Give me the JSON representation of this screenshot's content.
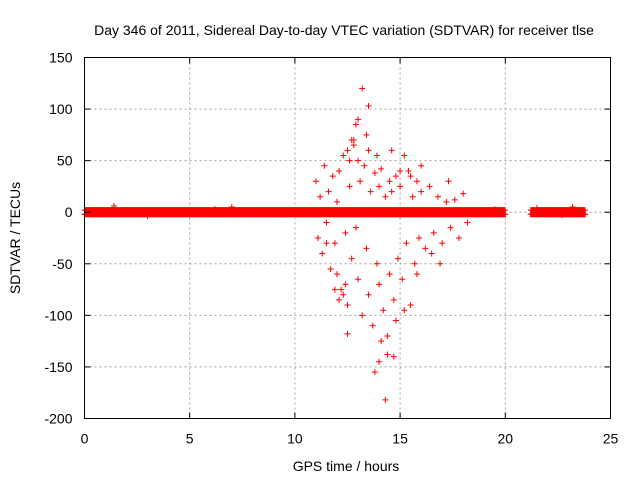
{
  "chart_data": {
    "type": "scatter",
    "title": "Day 346 of 2011, Sidereal Day-to-day VTEC variation (SDTVAR) for receiver tlse",
    "xlabel": "GPS time / hours",
    "ylabel": "SDTVAR / TECUs",
    "xlim": [
      0,
      25
    ],
    "ylim": [
      -200,
      150
    ],
    "xticks": [
      0,
      5,
      10,
      15,
      20,
      25
    ],
    "yticks": [
      -200,
      -150,
      -100,
      -50,
      0,
      50,
      100,
      150
    ],
    "grid": true,
    "marker": "+",
    "color": "#ff0000",
    "series": [
      {
        "name": "SDTVAR",
        "x": [
          0.5,
          1.4,
          3.0,
          6.2,
          7.0,
          9.6,
          11.0,
          11.1,
          11.2,
          11.3,
          11.4,
          11.5,
          11.6,
          11.7,
          11.8,
          11.9,
          12.0,
          12.0,
          12.1,
          12.2,
          12.3,
          12.4,
          12.5,
          12.5,
          12.6,
          12.7,
          12.8,
          12.9,
          13.0,
          13.0,
          13.1,
          13.2,
          13.3,
          13.4,
          13.5,
          13.5,
          13.6,
          13.7,
          13.8,
          13.9,
          14.0,
          14.0,
          14.1,
          14.2,
          14.3,
          14.4,
          14.5,
          14.5,
          14.6,
          14.7,
          14.8,
          14.9,
          15.0,
          15.1,
          15.2,
          15.3,
          15.4,
          15.5,
          15.6,
          15.7,
          15.8,
          15.9,
          16.0,
          16.2,
          16.4,
          16.6,
          16.8,
          17.0,
          17.2,
          17.4,
          17.6,
          17.8,
          18.0,
          18.2,
          19.5,
          21.5,
          22.0,
          22.7,
          23.2,
          12.9,
          13.5,
          12.7,
          14.3,
          13.8,
          12.5,
          14.0,
          12.3,
          14.7,
          14.4,
          13.2,
          16.0,
          15.2,
          11.9,
          12.8,
          13.9,
          14.8,
          12.1,
          13.4,
          15.5,
          16.5,
          17.3,
          11.5,
          12.6,
          14.1,
          15.8,
          16.9,
          13.0,
          14.6,
          12.4,
          15.0
        ],
        "y": [
          2,
          6,
          -4,
          3,
          5,
          -2,
          30,
          -25,
          15,
          -40,
          45,
          -10,
          20,
          -55,
          35,
          -30,
          10,
          -60,
          40,
          -75,
          55,
          -20,
          60,
          -90,
          25,
          -45,
          70,
          -15,
          50,
          -65,
          30,
          -100,
          45,
          -35,
          60,
          -80,
          20,
          -110,
          38,
          -50,
          25,
          -70,
          42,
          -95,
          15,
          -120,
          30,
          -60,
          20,
          -85,
          35,
          -45,
          25,
          -65,
          55,
          -30,
          40,
          -90,
          15,
          -50,
          30,
          -25,
          20,
          -35,
          25,
          -20,
          15,
          -30,
          10,
          -15,
          12,
          -25,
          18,
          -10,
          3,
          4,
          2,
          -3,
          5,
          85,
          103,
          70,
          -182,
          -155,
          -118,
          -145,
          -80,
          -140,
          -138,
          120,
          45,
          -95,
          -75,
          65,
          55,
          -105,
          -85,
          75,
          35,
          -40,
          30,
          -30,
          50,
          -125,
          -60,
          -50,
          90,
          60,
          -70,
          40
        ]
      }
    ],
    "bands": [
      {
        "x_from": 0,
        "x_to": 20.0,
        "y_low": -5,
        "y_high": 5
      },
      {
        "x_from": 21.2,
        "x_to": 23.8,
        "y_low": -5,
        "y_high": 5
      }
    ]
  }
}
